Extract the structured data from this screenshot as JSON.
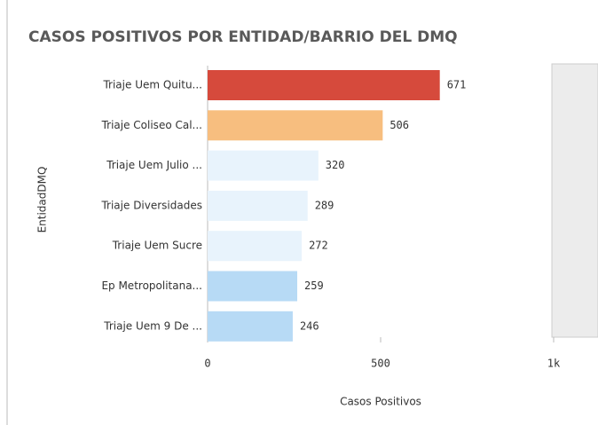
{
  "chart_data": {
    "type": "barh",
    "title": "CASOS POSITIVOS POR ENTIDAD/BARRIO DEL DMQ",
    "categories": [
      "Triaje Uem Quitu...",
      "Triaje Coliseo Cal...",
      "Triaje Uem Julio ...",
      "Triaje Diversidades",
      "Triaje Uem Sucre",
      "Ep Metropolitana...",
      "Triaje Uem 9 De ..."
    ],
    "values": [
      671,
      506,
      320,
      289,
      272,
      259,
      246
    ],
    "colors": [
      "#d64a3c",
      "#f7be7f",
      "#e8f3fc",
      "#e8f3fc",
      "#e8f3fc",
      "#b7daf5",
      "#b7daf5"
    ],
    "xlim": [
      0,
      1000
    ],
    "xticks": [
      0,
      500,
      {
        "value": 1000,
        "label": "1k"
      }
    ],
    "xlabel": "Casos Positivos",
    "ylabel": "EntidadDMQ"
  }
}
